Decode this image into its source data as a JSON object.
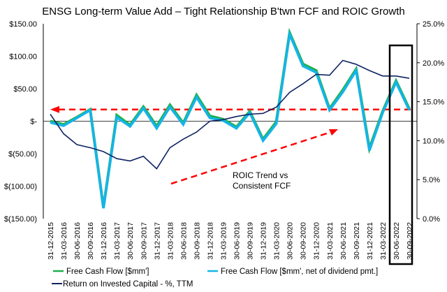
{
  "chart_data": {
    "type": "line",
    "title": "ENSG Long-term Value Add – Tight Relationship B'twn FCF and ROIC Growth",
    "xlabel": "",
    "ylabel_left": "",
    "ylabel_right": "",
    "x": [
      "31-12-2015",
      "31-03-2016",
      "30-06-2016",
      "30-09-2016",
      "31-12-2016",
      "31-03-2017",
      "30-06-2017",
      "30-09-2017",
      "31-12-2017",
      "31-03-2018",
      "30-06-2018",
      "30-09-2018",
      "31-12-2018",
      "31-03-2019",
      "30-06-2019",
      "30-09-2019",
      "31-12-2019",
      "31-03-2020",
      "30-06-2020",
      "30-09-2020",
      "31-12-2020",
      "31-03-2021",
      "30-06-2021",
      "30-09-2021",
      "31-12-2021",
      "31-03-2022",
      "30-06-2022",
      "30-09-2022"
    ],
    "ylim_left": [
      -150,
      150
    ],
    "yticks_left": [
      150,
      100,
      50,
      0,
      -50,
      -100,
      -150
    ],
    "ytick_labels_left": [
      "$150.00",
      "$100.00",
      "$50.00",
      "$-",
      "$(50.00)",
      "$(100.00)",
      "$(150.00)"
    ],
    "ylim_right": [
      0,
      25
    ],
    "yticks_right": [
      25,
      20,
      15,
      10,
      5,
      0
    ],
    "ytick_labels_right": [
      "25.0%",
      "20.0%",
      "15.0%",
      "10.0%",
      "5.0%",
      "0.0%"
    ],
    "series": [
      {
        "name": "Free Cash Flow [$mm']",
        "axis": "left",
        "color": "#1db14b",
        "values": [
          0,
          -5,
          6,
          18,
          -133,
          9,
          -6,
          22,
          -8,
          25,
          -3,
          40,
          8,
          3,
          -9,
          15,
          -28,
          -1,
          136,
          88,
          78,
          19,
          48,
          80,
          -42,
          15,
          62,
          19
        ]
      },
      {
        "name": "Free Cash Flow [$mm', net of dividend pmt.]",
        "axis": "left",
        "color": "#15b4e8",
        "values": [
          -2,
          -7,
          5,
          17,
          -134,
          6,
          -8,
          20,
          -11,
          22,
          -5,
          37,
          5,
          1,
          -11,
          13,
          -30,
          -4,
          134,
          85,
          75,
          17,
          45,
          78,
          -45,
          13,
          60,
          17
        ]
      },
      {
        "name": "Return on Invested Capital - %, TTM",
        "axis": "right",
        "color": "#0f2463",
        "values": [
          13.4,
          10.9,
          9.5,
          9.1,
          8.6,
          7.7,
          7.4,
          8.0,
          6.4,
          9.1,
          10.2,
          11.1,
          12.5,
          12.7,
          13.1,
          13.4,
          13.5,
          14.3,
          16.2,
          17.3,
          18.5,
          18.4,
          20.3,
          19.8,
          19.0,
          18.3,
          18.3,
          18.0
        ]
      }
    ],
    "annotations": [
      {
        "type": "dashed-arrow",
        "color": "#ff0000",
        "direction": "left",
        "level_left_axis": 18,
        "from_x": "30-09-2022",
        "to_x": "31-12-2015"
      },
      {
        "type": "dashed-arrow",
        "color": "#ff0000",
        "direction": "up-right",
        "label": "ROIC Trend vs Consistent FCF"
      },
      {
        "type": "highlight-box",
        "color": "#000000",
        "x_range": [
          "30-06-2022",
          "30-09-2022"
        ]
      }
    ],
    "annotation_text": [
      "ROIC Trend vs",
      "Consistent FCF"
    ],
    "legend": {
      "placement": "bottom",
      "entries": [
        {
          "label": "Free Cash Flow [$mm']",
          "color": "#1db14b"
        },
        {
          "label": "Free Cash Flow [$mm', net of dividend pmt.]",
          "color": "#15b4e8"
        },
        {
          "label": "Return on Invested Capital - %, TTM",
          "color": "#0f2463"
        }
      ]
    },
    "grid": false
  }
}
